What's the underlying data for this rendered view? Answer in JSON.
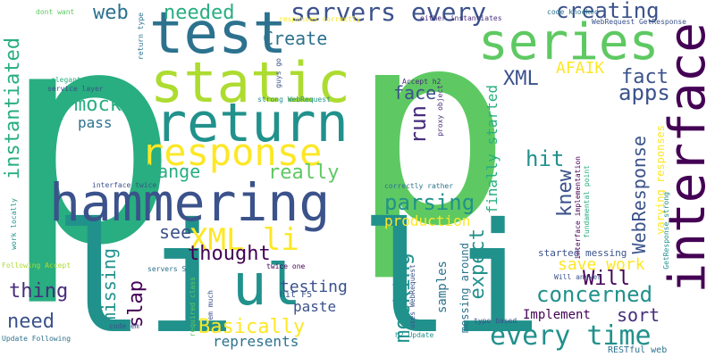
{
  "colors": {
    "background": "#ffffff",
    "deep_purple": "#440154",
    "indigo": "#472d7b",
    "navy_blue": "#3b528b",
    "steel_blue": "#2c728e",
    "teal": "#21918c",
    "sea_green": "#28ae80",
    "green": "#5ec962",
    "lime": "#addc30",
    "yellow": "#fde725"
  },
  "words": [
    "p",
    "p",
    "li",
    "li",
    "interface",
    "static",
    "return",
    "test",
    "series",
    "hammering",
    "response",
    "ul",
    "servers every",
    "every time",
    "XML li",
    "Basically",
    "thought",
    "concerned",
    "creating",
    "apps",
    "instantiated",
    "mock",
    "web",
    "needed",
    "Create",
    "XML",
    "AFAIK",
    "fact",
    "face",
    "run",
    "hit",
    "knew",
    "WebResponse",
    "save work",
    "Will",
    "parsing",
    "production",
    "change",
    "really",
    "expect",
    "finally started",
    "mocking",
    "testing",
    "see",
    "slap",
    "missing",
    "thing",
    "need",
    "paste",
    "represents",
    "Implement",
    "sort",
    "pass",
    "samples",
    "messing around",
    "started messing",
    "hit F5",
    "varying responses",
    "RESTful web",
    "dont want",
    "responses correctly",
    "either instantiates",
    "code knocked",
    "WebRequest GetResponse",
    "return type",
    "guys go",
    "Accept h2",
    "proxy object",
    "elegant way",
    "service layer",
    "strong WebRequest",
    "interface twice",
    "correctly rather",
    "interface implementation",
    "fundamental point",
    "Will answer",
    "GetResponse strong",
    "work locally",
    "Following Accept",
    "servers S",
    "twice one",
    "required class",
    "em much",
    "uses WebRequest",
    "h2 Update",
    "type based",
    "code em",
    "Update Following"
  ]
}
